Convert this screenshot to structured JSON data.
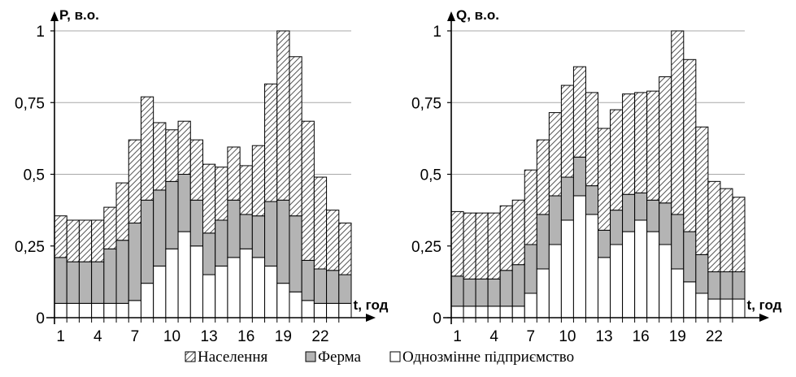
{
  "chart_data": [
    {
      "type": "bar",
      "stacked": true,
      "ylabel": "P, в.о.",
      "xlabel": "t, год",
      "ylim": [
        0,
        1
      ],
      "yticks": [
        "0",
        "0,25",
        "0,5",
        "0,75",
        "1"
      ],
      "xticks": [
        "1",
        "4",
        "7",
        "10",
        "13",
        "16",
        "19",
        "22"
      ],
      "grid": true,
      "x": [
        1,
        2,
        3,
        4,
        5,
        6,
        7,
        8,
        9,
        10,
        11,
        12,
        13,
        14,
        15,
        16,
        17,
        18,
        19,
        20,
        21,
        22,
        23,
        24
      ],
      "series": [
        {
          "name": "Однозмінне підприємство",
          "values": [
            0.05,
            0.05,
            0.05,
            0.05,
            0.05,
            0.05,
            0.06,
            0.12,
            0.18,
            0.24,
            0.3,
            0.25,
            0.15,
            0.18,
            0.21,
            0.24,
            0.21,
            0.18,
            0.12,
            0.09,
            0.06,
            0.05,
            0.05,
            0.05
          ]
        },
        {
          "name": "Ферма",
          "values": [
            0.16,
            0.145,
            0.145,
            0.145,
            0.19,
            0.22,
            0.27,
            0.29,
            0.265,
            0.235,
            0.2,
            0.16,
            0.145,
            0.16,
            0.2,
            0.12,
            0.145,
            0.225,
            0.29,
            0.265,
            0.14,
            0.12,
            0.115,
            0.1
          ]
        },
        {
          "name": "Населення",
          "values": [
            0.145,
            0.145,
            0.145,
            0.145,
            0.145,
            0.2,
            0.29,
            0.36,
            0.235,
            0.18,
            0.185,
            0.21,
            0.24,
            0.185,
            0.185,
            0.17,
            0.245,
            0.41,
            0.59,
            0.555,
            0.485,
            0.32,
            0.21,
            0.18
          ]
        }
      ]
    },
    {
      "type": "bar",
      "stacked": true,
      "ylabel": "Q, в.о.",
      "xlabel": "t, год",
      "ylim": [
        0,
        1
      ],
      "yticks": [
        "0",
        "0,25",
        "0,5",
        "0,75",
        "1"
      ],
      "xticks": [
        "1",
        "4",
        "7",
        "10",
        "13",
        "16",
        "19",
        "22"
      ],
      "grid": true,
      "x": [
        1,
        2,
        3,
        4,
        5,
        6,
        7,
        8,
        9,
        10,
        11,
        12,
        13,
        14,
        15,
        16,
        17,
        18,
        19,
        20,
        21,
        22,
        23,
        24
      ],
      "series": [
        {
          "name": "Однозмінне підприємство",
          "values": [
            0.04,
            0.04,
            0.04,
            0.04,
            0.04,
            0.04,
            0.085,
            0.17,
            0.255,
            0.34,
            0.425,
            0.36,
            0.21,
            0.255,
            0.3,
            0.34,
            0.3,
            0.255,
            0.17,
            0.125,
            0.085,
            0.065,
            0.065,
            0.065
          ]
        },
        {
          "name": "Ферма",
          "values": [
            0.105,
            0.095,
            0.095,
            0.095,
            0.125,
            0.145,
            0.17,
            0.19,
            0.17,
            0.15,
            0.135,
            0.1,
            0.095,
            0.12,
            0.13,
            0.095,
            0.11,
            0.145,
            0.19,
            0.175,
            0.135,
            0.095,
            0.095,
            0.095
          ]
        },
        {
          "name": "Населення",
          "values": [
            0.225,
            0.23,
            0.23,
            0.23,
            0.225,
            0.225,
            0.26,
            0.26,
            0.29,
            0.32,
            0.315,
            0.325,
            0.355,
            0.35,
            0.35,
            0.35,
            0.38,
            0.44,
            0.64,
            0.6,
            0.445,
            0.315,
            0.29,
            0.26
          ]
        }
      ]
    }
  ],
  "legend": {
    "population": "Населення",
    "farm": "Ферма",
    "enterprise": "Однозмінне підприємство"
  },
  "colors": {
    "enterprise_fill": "#ffffff",
    "farm_fill": "#b4b4b4",
    "hatch_line": "#555555",
    "grid": "#a8a8a8",
    "axis": "#000000"
  }
}
